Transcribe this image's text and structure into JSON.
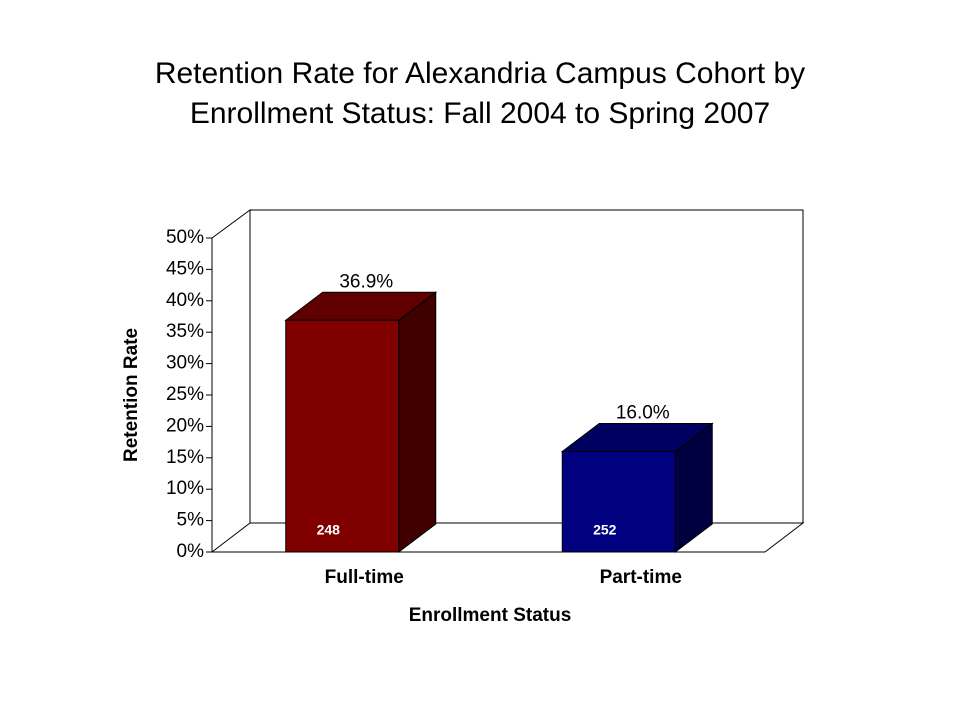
{
  "chart_data": {
    "type": "bar3d",
    "title": [
      "Retention Rate for Alexandria Campus Cohort by",
      "Enrollment Status: Fall 2004 to Spring 2007"
    ],
    "x_label": "Enrollment Status",
    "y_label": "Retention Rate",
    "categories": [
      "Full-time",
      "Part-time"
    ],
    "values": [
      36.9,
      16.0
    ],
    "value_labels": [
      "36.9%",
      "16.0%"
    ],
    "counts": [
      248,
      252
    ],
    "colors": [
      "#800000",
      "#000080"
    ],
    "ylim": [
      0,
      50
    ],
    "yticks": [
      {
        "value": 0,
        "label": "0%"
      },
      {
        "value": 5,
        "label": "5%"
      },
      {
        "value": 10,
        "label": "10%"
      },
      {
        "value": 15,
        "label": "15%"
      },
      {
        "value": 20,
        "label": "20%"
      },
      {
        "value": 25,
        "label": "25%"
      },
      {
        "value": 30,
        "label": "30%"
      },
      {
        "value": 35,
        "label": "35%"
      },
      {
        "value": 40,
        "label": "40%"
      },
      {
        "value": 45,
        "label": "45%"
      },
      {
        "value": 50,
        "label": "50%"
      }
    ]
  }
}
